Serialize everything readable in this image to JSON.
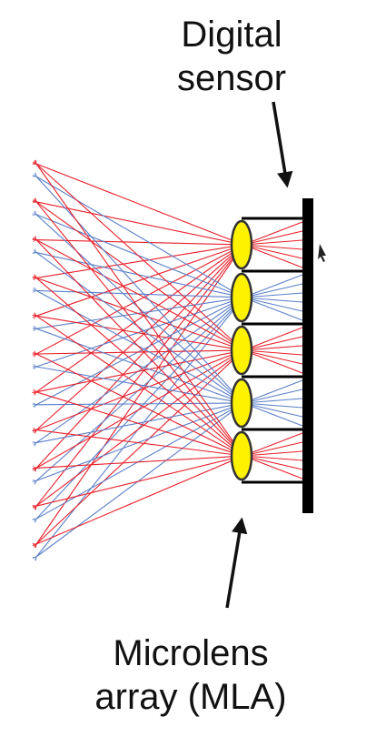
{
  "labels": {
    "sensor": {
      "line1": "Digital",
      "line2": "sensor"
    },
    "mla": {
      "line1": "Microlens",
      "line2": "array (MLA)"
    }
  },
  "colors": {
    "lens_fill": "#fff200",
    "lens_stroke": "#333333",
    "sensor": "#000000",
    "ray_red": "#e8202a",
    "ray_blue": "#5a7fc9",
    "pointer_arrow": "#111111"
  },
  "microlenses": [
    {
      "ray_color": "red"
    },
    {
      "ray_color": "blue"
    },
    {
      "ray_color": "red"
    },
    {
      "ray_color": "blue"
    },
    {
      "ray_color": "red"
    }
  ]
}
